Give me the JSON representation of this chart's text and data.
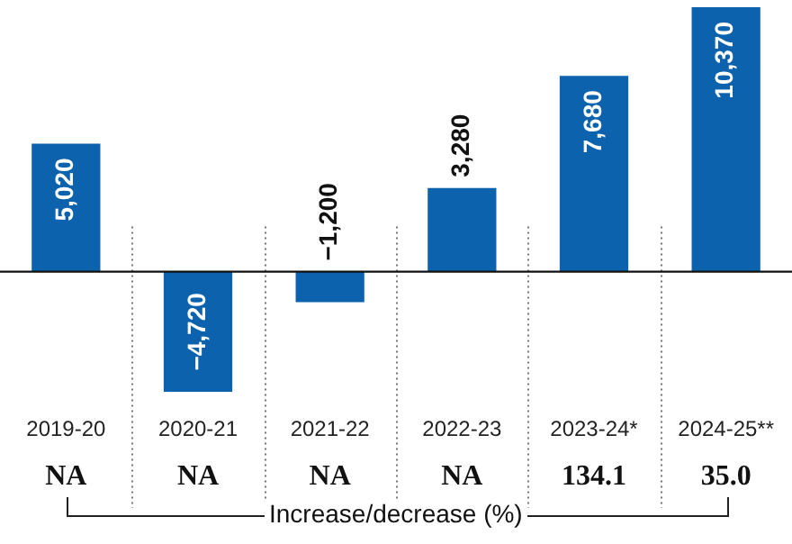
{
  "chart_data": {
    "type": "bar",
    "categories": [
      "2019-20",
      "2020-21",
      "2021-22",
      "2022-23",
      "2023-24*",
      "2024-25**"
    ],
    "values": [
      5020,
      -4720,
      -1200,
      3280,
      7680,
      10370
    ],
    "color": "#0d62ad",
    "value_labels": [
      "5,020",
      "−4,720",
      "−1,200",
      "3,280",
      "7,680",
      "10,370"
    ],
    "grid": "x",
    "tick_labels": "x",
    "annotations": [
      "NA",
      "NA",
      "NA",
      "NA",
      "134.1",
      "35.0",
      "Increase/decrease (%)"
    ]
  }
}
